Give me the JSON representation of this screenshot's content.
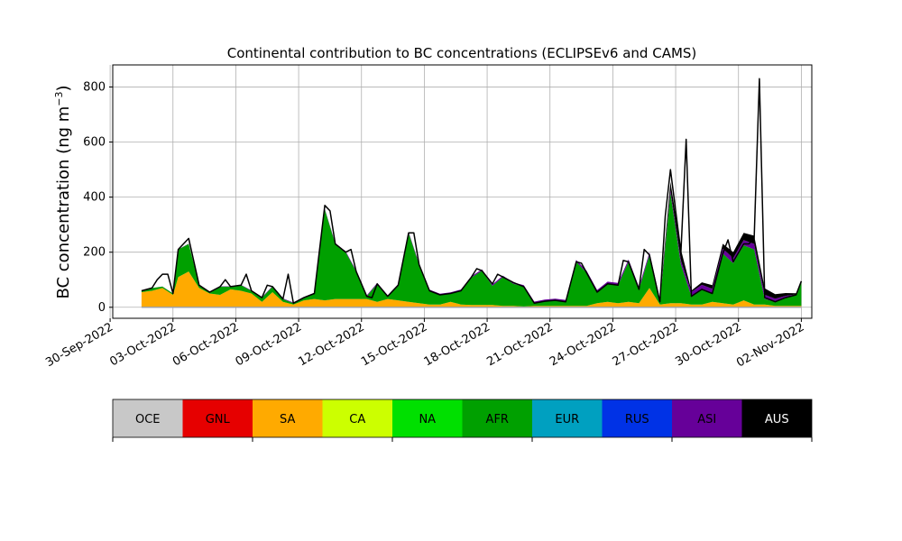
{
  "chart_data": {
    "type": "area",
    "title": "Continental contribution to BC concentrations (ECLIPSEv6 and CAMS)",
    "ylabel_prefix": "BC concentration (ng m",
    "ylabel_exp": "−3",
    "ylabel_suffix": ")",
    "ylim": [
      -40,
      880
    ],
    "yticks": [
      0,
      200,
      400,
      600,
      800
    ],
    "ytick_labels": [
      "0",
      "200",
      "400",
      "600",
      "800"
    ],
    "xlim": [
      "2022-09-30T03:00",
      "2022-11-02T12:00"
    ],
    "xticks": [
      "2022-09-30",
      "2022-10-03",
      "2022-10-06",
      "2022-10-09",
      "2022-10-12",
      "2022-10-15",
      "2022-10-18",
      "2022-10-21",
      "2022-10-24",
      "2022-10-27",
      "2022-10-30",
      "2022-11-02"
    ],
    "xtick_labels": [
      "30-Sep-2022",
      "03-Oct-2022",
      "06-Oct-2022",
      "09-Oct-2022",
      "12-Oct-2022",
      "15-Oct-2022",
      "18-Oct-2022",
      "21-Oct-2022",
      "24-Oct-2022",
      "27-Oct-2022",
      "30-Oct-2022",
      "02-Nov-2022"
    ],
    "grid": true,
    "total_line_color": "#000000",
    "series": [
      {
        "name": "SA",
        "color": "#ffaa00",
        "points": [
          [
            "2022-10-01T12:00",
            55
          ],
          [
            "2022-10-02T00:00",
            60
          ],
          [
            "2022-10-02T12:00",
            70
          ],
          [
            "2022-10-03T00:00",
            45
          ],
          [
            "2022-10-03T06:00",
            110
          ],
          [
            "2022-10-03T18:00",
            130
          ],
          [
            "2022-10-04T06:00",
            70
          ],
          [
            "2022-10-04T18:00",
            50
          ],
          [
            "2022-10-05T06:00",
            45
          ],
          [
            "2022-10-05T18:00",
            65
          ],
          [
            "2022-10-06T06:00",
            60
          ],
          [
            "2022-10-06T18:00",
            50
          ],
          [
            "2022-10-07T06:00",
            20
          ],
          [
            "2022-10-07T18:00",
            55
          ],
          [
            "2022-10-08T06:00",
            20
          ],
          [
            "2022-10-08T18:00",
            10
          ],
          [
            "2022-10-09T06:00",
            25
          ],
          [
            "2022-10-09T18:00",
            30
          ],
          [
            "2022-10-10T06:00",
            25
          ],
          [
            "2022-10-10T18:00",
            30
          ],
          [
            "2022-10-11T06:00",
            30
          ],
          [
            "2022-10-11T18:00",
            30
          ],
          [
            "2022-10-12T06:00",
            30
          ],
          [
            "2022-10-12T18:00",
            20
          ],
          [
            "2022-10-13T06:00",
            30
          ],
          [
            "2022-10-13T18:00",
            25
          ],
          [
            "2022-10-14T06:00",
            20
          ],
          [
            "2022-10-14T18:00",
            15
          ],
          [
            "2022-10-15T06:00",
            10
          ],
          [
            "2022-10-15T18:00",
            10
          ],
          [
            "2022-10-16T06:00",
            20
          ],
          [
            "2022-10-16T18:00",
            10
          ],
          [
            "2022-10-17T06:00",
            8
          ],
          [
            "2022-10-17T18:00",
            8
          ],
          [
            "2022-10-18T06:00",
            8
          ],
          [
            "2022-10-18T18:00",
            5
          ],
          [
            "2022-10-19T06:00",
            5
          ],
          [
            "2022-10-19T18:00",
            3
          ],
          [
            "2022-10-20T06:00",
            5
          ],
          [
            "2022-10-20T18:00",
            5
          ],
          [
            "2022-10-21T06:00",
            5
          ],
          [
            "2022-10-21T18:00",
            5
          ],
          [
            "2022-10-22T06:00",
            5
          ],
          [
            "2022-10-22T18:00",
            5
          ],
          [
            "2022-10-23T06:00",
            15
          ],
          [
            "2022-10-23T18:00",
            20
          ],
          [
            "2022-10-24T06:00",
            15
          ],
          [
            "2022-10-24T18:00",
            20
          ],
          [
            "2022-10-25T06:00",
            15
          ],
          [
            "2022-10-25T18:00",
            70
          ],
          [
            "2022-10-26T06:00",
            10
          ],
          [
            "2022-10-26T18:00",
            15
          ],
          [
            "2022-10-27T06:00",
            15
          ],
          [
            "2022-10-27T18:00",
            10
          ],
          [
            "2022-10-28T06:00",
            10
          ],
          [
            "2022-10-28T18:00",
            20
          ],
          [
            "2022-10-29T06:00",
            15
          ],
          [
            "2022-10-29T18:00",
            10
          ],
          [
            "2022-10-30T06:00",
            25
          ],
          [
            "2022-10-30T18:00",
            10
          ],
          [
            "2022-10-31T06:00",
            10
          ],
          [
            "2022-10-31T18:00",
            5
          ],
          [
            "2022-11-01T06:00",
            5
          ],
          [
            "2022-11-01T18:00",
            5
          ],
          [
            "2022-11-02T00:00",
            5
          ]
        ]
      },
      {
        "name": "AFR",
        "color": "#00a000",
        "points": [
          [
            "2022-10-01T12:00",
            5
          ],
          [
            "2022-10-02T00:00",
            10
          ],
          [
            "2022-10-02T12:00",
            5
          ],
          [
            "2022-10-03T00:00",
            5
          ],
          [
            "2022-10-03T06:00",
            100
          ],
          [
            "2022-10-03T18:00",
            100
          ],
          [
            "2022-10-04T06:00",
            10
          ],
          [
            "2022-10-04T18:00",
            5
          ],
          [
            "2022-10-05T06:00",
            30
          ],
          [
            "2022-10-05T18:00",
            10
          ],
          [
            "2022-10-06T06:00",
            20
          ],
          [
            "2022-10-06T18:00",
            10
          ],
          [
            "2022-10-07T06:00",
            15
          ],
          [
            "2022-10-07T18:00",
            20
          ],
          [
            "2022-10-08T06:00",
            10
          ],
          [
            "2022-10-08T18:00",
            5
          ],
          [
            "2022-10-09T06:00",
            10
          ],
          [
            "2022-10-09T18:00",
            20
          ],
          [
            "2022-10-10T06:00",
            330
          ],
          [
            "2022-10-10T18:00",
            200
          ],
          [
            "2022-10-11T06:00",
            170
          ],
          [
            "2022-10-11T18:00",
            100
          ],
          [
            "2022-10-12T06:00",
            10
          ],
          [
            "2022-10-12T18:00",
            65
          ],
          [
            "2022-10-13T06:00",
            10
          ],
          [
            "2022-10-13T18:00",
            55
          ],
          [
            "2022-10-14T06:00",
            250
          ],
          [
            "2022-10-14T18:00",
            140
          ],
          [
            "2022-10-15T06:00",
            50
          ],
          [
            "2022-10-15T18:00",
            35
          ],
          [
            "2022-10-16T06:00",
            30
          ],
          [
            "2022-10-16T18:00",
            50
          ],
          [
            "2022-10-17T06:00",
            100
          ],
          [
            "2022-10-17T18:00",
            125
          ],
          [
            "2022-10-18T06:00",
            70
          ],
          [
            "2022-10-18T18:00",
            105
          ],
          [
            "2022-10-19T06:00",
            80
          ],
          [
            "2022-10-19T18:00",
            72
          ],
          [
            "2022-10-20T06:00",
            10
          ],
          [
            "2022-10-20T18:00",
            17
          ],
          [
            "2022-10-21T06:00",
            20
          ],
          [
            "2022-10-21T18:00",
            15
          ],
          [
            "2022-10-22T06:00",
            160
          ],
          [
            "2022-10-22T18:00",
            120
          ],
          [
            "2022-10-23T06:00",
            40
          ],
          [
            "2022-10-23T18:00",
            65
          ],
          [
            "2022-10-24T06:00",
            65
          ],
          [
            "2022-10-24T18:00",
            145
          ],
          [
            "2022-10-25T06:00",
            50
          ],
          [
            "2022-10-25T18:00",
            120
          ],
          [
            "2022-10-26T06:00",
            10
          ],
          [
            "2022-10-26T18:00",
            400
          ],
          [
            "2022-10-27T06:00",
            140
          ],
          [
            "2022-10-27T18:00",
            30
          ],
          [
            "2022-10-28T06:00",
            55
          ],
          [
            "2022-10-28T18:00",
            30
          ],
          [
            "2022-10-29T06:00",
            180
          ],
          [
            "2022-10-29T18:00",
            150
          ],
          [
            "2022-10-30T06:00",
            200
          ],
          [
            "2022-10-30T18:00",
            200
          ],
          [
            "2022-10-31T06:00",
            20
          ],
          [
            "2022-10-31T18:00",
            15
          ],
          [
            "2022-11-01T06:00",
            30
          ],
          [
            "2022-11-01T18:00",
            40
          ],
          [
            "2022-11-02T00:00",
            90
          ]
        ]
      },
      {
        "name": "ASI",
        "color": "#660099",
        "points": [
          [
            "2022-10-01T12:00",
            0
          ],
          [
            "2022-10-18T06:00",
            5
          ],
          [
            "2022-10-19T06:00",
            5
          ],
          [
            "2022-10-26T18:00",
            10
          ],
          [
            "2022-10-27T06:00",
            15
          ],
          [
            "2022-10-30T18:00",
            20
          ],
          [
            "2022-11-02T00:00",
            0
          ]
        ]
      },
      {
        "name": "AUS",
        "color": "#000000",
        "points": [
          [
            "2022-10-01T12:00",
            0
          ],
          [
            "2022-10-26T06:00",
            0
          ],
          [
            "2022-10-26T18:00",
            30
          ],
          [
            "2022-10-27T06:00",
            40
          ],
          [
            "2022-10-27T18:00",
            5
          ],
          [
            "2022-10-30T18:00",
            30
          ],
          [
            "2022-11-02T00:00",
            0
          ]
        ]
      }
    ],
    "total": [
      [
        "2022-10-01T12:00",
        60
      ],
      [
        "2022-10-02T00:00",
        70
      ],
      [
        "2022-10-02T06:00",
        100
      ],
      [
        "2022-10-02T12:00",
        120
      ],
      [
        "2022-10-02T18:00",
        120
      ],
      [
        "2022-10-03T00:00",
        50
      ],
      [
        "2022-10-03T06:00",
        210
      ],
      [
        "2022-10-03T12:00",
        230
      ],
      [
        "2022-10-03T18:00",
        250
      ],
      [
        "2022-10-04T06:00",
        80
      ],
      [
        "2022-10-04T18:00",
        55
      ],
      [
        "2022-10-05T06:00",
        75
      ],
      [
        "2022-10-05T12:00",
        100
      ],
      [
        "2022-10-05T18:00",
        75
      ],
      [
        "2022-10-06T06:00",
        80
      ],
      [
        "2022-10-06T12:00",
        120
      ],
      [
        "2022-10-06T18:00",
        60
      ],
      [
        "2022-10-07T06:00",
        35
      ],
      [
        "2022-10-07T12:00",
        80
      ],
      [
        "2022-10-07T18:00",
        75
      ],
      [
        "2022-10-08T06:00",
        30
      ],
      [
        "2022-10-08T12:00",
        120
      ],
      [
        "2022-10-08T18:00",
        15
      ],
      [
        "2022-10-09T06:00",
        35
      ],
      [
        "2022-10-09T18:00",
        50
      ],
      [
        "2022-10-10T06:00",
        370
      ],
      [
        "2022-10-10T12:00",
        350
      ],
      [
        "2022-10-10T18:00",
        230
      ],
      [
        "2022-10-11T06:00",
        200
      ],
      [
        "2022-10-11T12:00",
        210
      ],
      [
        "2022-10-11T18:00",
        130
      ],
      [
        "2022-10-12T06:00",
        40
      ],
      [
        "2022-10-12T12:00",
        35
      ],
      [
        "2022-10-12T18:00",
        85
      ],
      [
        "2022-10-13T06:00",
        40
      ],
      [
        "2022-10-13T18:00",
        80
      ],
      [
        "2022-10-14T06:00",
        270
      ],
      [
        "2022-10-14T12:00",
        270
      ],
      [
        "2022-10-14T18:00",
        155
      ],
      [
        "2022-10-15T06:00",
        60
      ],
      [
        "2022-10-15T18:00",
        45
      ],
      [
        "2022-10-16T06:00",
        50
      ],
      [
        "2022-10-16T18:00",
        60
      ],
      [
        "2022-10-17T06:00",
        110
      ],
      [
        "2022-10-17T12:00",
        140
      ],
      [
        "2022-10-17T18:00",
        133
      ],
      [
        "2022-10-18T06:00",
        85
      ],
      [
        "2022-10-18T12:00",
        120
      ],
      [
        "2022-10-18T18:00",
        110
      ],
      [
        "2022-10-19T06:00",
        90
      ],
      [
        "2022-10-19T18:00",
        75
      ],
      [
        "2022-10-20T06:00",
        15
      ],
      [
        "2022-10-20T18:00",
        22
      ],
      [
        "2022-10-21T06:00",
        25
      ],
      [
        "2022-10-21T18:00",
        20
      ],
      [
        "2022-10-22T06:00",
        165
      ],
      [
        "2022-10-22T12:00",
        160
      ],
      [
        "2022-10-22T18:00",
        125
      ],
      [
        "2022-10-23T06:00",
        55
      ],
      [
        "2022-10-23T18:00",
        85
      ],
      [
        "2022-10-24T06:00",
        80
      ],
      [
        "2022-10-24T12:00",
        170
      ],
      [
        "2022-10-24T18:00",
        165
      ],
      [
        "2022-10-25T06:00",
        65
      ],
      [
        "2022-10-25T12:00",
        210
      ],
      [
        "2022-10-25T18:00",
        190
      ],
      [
        "2022-10-26T06:00",
        20
      ],
      [
        "2022-10-26T12:00",
        330
      ],
      [
        "2022-10-26T18:00",
        500
      ],
      [
        "2022-10-27T06:00",
        200
      ],
      [
        "2022-10-27T12:00",
        610
      ],
      [
        "2022-10-27T18:00",
        40
      ],
      [
        "2022-10-28T06:00",
        65
      ],
      [
        "2022-10-28T18:00",
        50
      ],
      [
        "2022-10-29T06:00",
        195
      ],
      [
        "2022-10-29T12:00",
        245
      ],
      [
        "2022-10-29T18:00",
        165
      ],
      [
        "2022-10-30T06:00",
        230
      ],
      [
        "2022-10-30T12:00",
        230
      ],
      [
        "2022-10-30T18:00",
        250
      ],
      [
        "2022-10-31T00:00",
        830
      ],
      [
        "2022-10-31T06:00",
        35
      ],
      [
        "2022-10-31T18:00",
        20
      ],
      [
        "2022-11-01T06:00",
        35
      ],
      [
        "2022-11-01T18:00",
        45
      ],
      [
        "2022-11-02T00:00",
        95
      ]
    ]
  },
  "legend": {
    "entries": [
      {
        "label": "OCE",
        "color": "#c8c8c8",
        "text_color": "#000000"
      },
      {
        "label": "GNL",
        "color": "#e60000",
        "text_color": "#000000"
      },
      {
        "label": "SA",
        "color": "#ffaa00",
        "text_color": "#000000"
      },
      {
        "label": "CA",
        "color": "#ccff00",
        "text_color": "#000000"
      },
      {
        "label": "NA",
        "color": "#00e000",
        "text_color": "#000000"
      },
      {
        "label": "AFR",
        "color": "#00a000",
        "text_color": "#000000"
      },
      {
        "label": "EUR",
        "color": "#00a0c0",
        "text_color": "#000000"
      },
      {
        "label": "RUS",
        "color": "#0032e6",
        "text_color": "#000000"
      },
      {
        "label": "ASI",
        "color": "#660099",
        "text_color": "#000000"
      },
      {
        "label": "AUS",
        "color": "#000000",
        "text_color": "#ffffff"
      }
    ]
  }
}
